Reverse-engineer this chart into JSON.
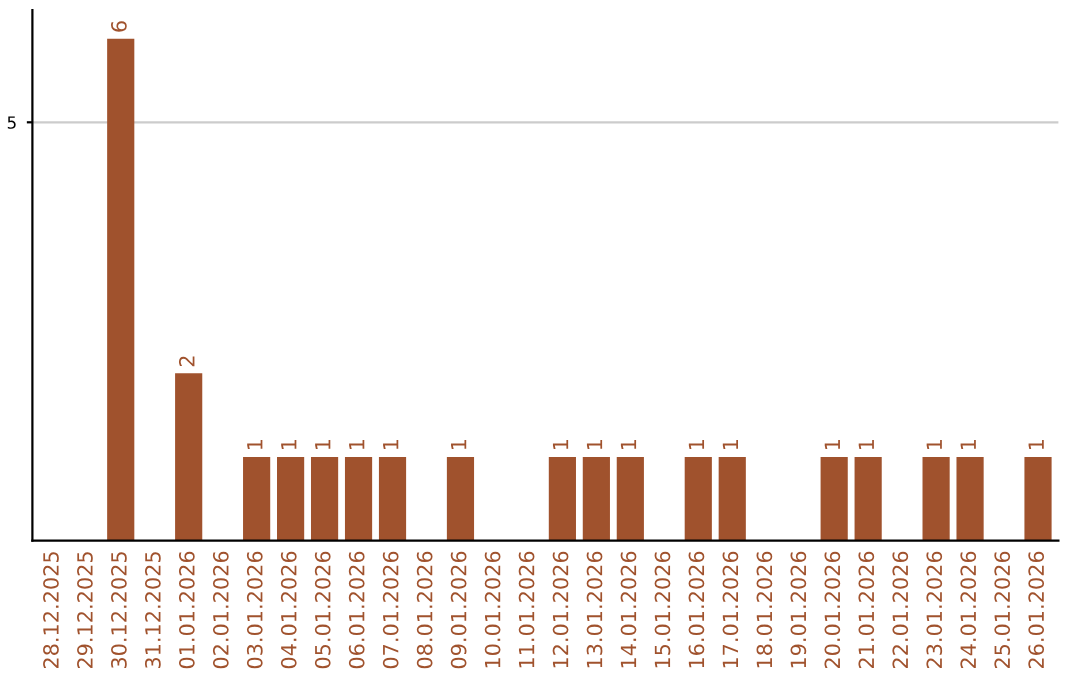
{
  "chart_data": {
    "type": "bar",
    "categories": [
      "28.12.2025",
      "29.12.2025",
      "30.12.2025",
      "31.12.2025",
      "01.01.2026",
      "02.01.2026",
      "03.01.2026",
      "04.01.2026",
      "05.01.2026",
      "06.01.2026",
      "07.01.2026",
      "08.01.2026",
      "09.01.2026",
      "10.01.2026",
      "11.01.2026",
      "12.01.2026",
      "13.01.2026",
      "14.01.2026",
      "15.01.2026",
      "16.01.2026",
      "17.01.2026",
      "18.01.2026",
      "19.01.2026",
      "20.01.2026",
      "21.01.2026",
      "22.01.2026",
      "23.01.2026",
      "24.01.2026",
      "25.01.2026",
      "26.01.2026"
    ],
    "values": [
      0,
      0,
      6,
      0,
      2,
      0,
      1,
      1,
      1,
      1,
      1,
      0,
      1,
      0,
      0,
      1,
      1,
      1,
      0,
      1,
      1,
      0,
      0,
      1,
      1,
      0,
      1,
      1,
      0,
      1
    ],
    "value_labels": [
      null,
      null,
      "6",
      null,
      "2",
      null,
      "1",
      "1",
      "1",
      "1",
      "1",
      null,
      "1",
      null,
      null,
      "1",
      "1",
      "1",
      null,
      "1",
      "1",
      null,
      null,
      "1",
      "1",
      null,
      "1",
      "1",
      null,
      "1"
    ],
    "color": "#a0522d",
    "ylim": [
      0,
      6.34
    ],
    "yticks": [
      5
    ],
    "grid": "y"
  }
}
